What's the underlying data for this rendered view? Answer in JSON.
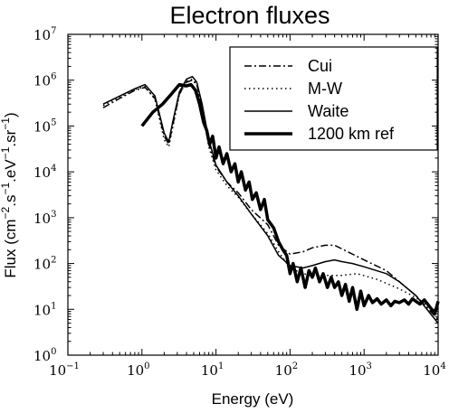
{
  "chart_data": {
    "type": "line",
    "title": "Electron fluxes",
    "xlabel": "Energy (eV)",
    "ylabel_parts": [
      "Flux (cm",
      "−2",
      ".s",
      "−1",
      ".eV",
      "−1",
      ".sr",
      "−1",
      ")"
    ],
    "xscale": "log",
    "yscale": "log",
    "xlim": [
      0.1,
      10000
    ],
    "ylim": [
      1,
      10000000
    ],
    "x_ticks": [
      {
        "base": "10",
        "exp": "−1"
      },
      {
        "base": "10",
        "exp": "0"
      },
      {
        "base": "10",
        "exp": "1"
      },
      {
        "base": "10",
        "exp": "2"
      },
      {
        "base": "10",
        "exp": "3"
      },
      {
        "base": "10",
        "exp": "4"
      }
    ],
    "y_ticks": [
      {
        "base": "10",
        "exp": "0"
      },
      {
        "base": "10",
        "exp": "1"
      },
      {
        "base": "10",
        "exp": "2"
      },
      {
        "base": "10",
        "exp": "3"
      },
      {
        "base": "10",
        "exp": "4"
      },
      {
        "base": "10",
        "exp": "5"
      },
      {
        "base": "10",
        "exp": "6"
      },
      {
        "base": "10",
        "exp": "7"
      }
    ],
    "grid": false,
    "legend_position": "top-right",
    "series": [
      {
        "name": "Cui",
        "style": "dashdot",
        "width": 1.5,
        "points": [
          [
            0.3,
            250000
          ],
          [
            0.5,
            400000
          ],
          [
            0.8,
            600000
          ],
          [
            1.1,
            700000
          ],
          [
            1.5,
            400000
          ],
          [
            2.0,
            60000
          ],
          [
            2.3,
            40000
          ],
          [
            2.6,
            100000
          ],
          [
            3.2,
            500000
          ],
          [
            4.0,
            900000
          ],
          [
            4.8,
            1000000
          ],
          [
            5.5,
            800000
          ],
          [
            6.5,
            250000
          ],
          [
            8.0,
            40000
          ],
          [
            10,
            13000
          ],
          [
            14,
            6000
          ],
          [
            20,
            3500
          ],
          [
            30,
            1500
          ],
          [
            50,
            700
          ],
          [
            70,
            250
          ],
          [
            100,
            160
          ],
          [
            150,
            180
          ],
          [
            200,
            220
          ],
          [
            300,
            250
          ],
          [
            400,
            250
          ],
          [
            600,
            180
          ],
          [
            1000,
            120
          ],
          [
            2000,
            70
          ],
          [
            3000,
            40
          ],
          [
            5000,
            20
          ],
          [
            10000,
            6
          ]
        ]
      },
      {
        "name": "M-W",
        "style": "dotted",
        "width": 1.5,
        "points": [
          [
            0.3,
            280000
          ],
          [
            0.5,
            430000
          ],
          [
            0.8,
            620000
          ],
          [
            1.1,
            720000
          ],
          [
            1.5,
            380000
          ],
          [
            2.0,
            50000
          ],
          [
            2.3,
            35000
          ],
          [
            2.6,
            90000
          ],
          [
            3.2,
            480000
          ],
          [
            4.0,
            950000
          ],
          [
            4.8,
            1050000
          ],
          [
            5.5,
            800000
          ],
          [
            6.5,
            220000
          ],
          [
            8.0,
            35000
          ],
          [
            10,
            11000
          ],
          [
            14,
            5000
          ],
          [
            20,
            2800
          ],
          [
            30,
            1200
          ],
          [
            50,
            450
          ],
          [
            70,
            180
          ],
          [
            100,
            80
          ],
          [
            150,
            60
          ],
          [
            200,
            55
          ],
          [
            300,
            55
          ],
          [
            500,
            55
          ],
          [
            800,
            60
          ],
          [
            1500,
            45
          ],
          [
            3000,
            28
          ],
          [
            5000,
            18
          ],
          [
            10000,
            8
          ]
        ]
      },
      {
        "name": "Waite",
        "style": "solid",
        "width": 1.5,
        "points": [
          [
            0.3,
            300000
          ],
          [
            0.5,
            450000
          ],
          [
            0.8,
            650000
          ],
          [
            1.1,
            800000
          ],
          [
            1.5,
            450000
          ],
          [
            2.0,
            70000
          ],
          [
            2.3,
            45000
          ],
          [
            2.6,
            120000
          ],
          [
            3.2,
            550000
          ],
          [
            4.0,
            1050000
          ],
          [
            4.8,
            1200000
          ],
          [
            5.5,
            900000
          ],
          [
            6.5,
            300000
          ],
          [
            8.0,
            50000
          ],
          [
            10,
            14000
          ],
          [
            14,
            6000
          ],
          [
            20,
            3000
          ],
          [
            30,
            1200
          ],
          [
            50,
            400
          ],
          [
            70,
            150
          ],
          [
            100,
            90
          ],
          [
            150,
            80
          ],
          [
            200,
            90
          ],
          [
            300,
            110
          ],
          [
            400,
            120
          ],
          [
            500,
            110
          ],
          [
            700,
            100
          ],
          [
            1000,
            85
          ],
          [
            2000,
            60
          ],
          [
            3000,
            40
          ],
          [
            5000,
            20
          ],
          [
            10000,
            5
          ]
        ]
      },
      {
        "name": "1200 km ref",
        "style": "solid",
        "width": 3.5,
        "points": [
          [
            1.0,
            100000
          ],
          [
            1.4,
            200000
          ],
          [
            1.9,
            300000
          ],
          [
            2.5,
            500000
          ],
          [
            3.2,
            800000
          ],
          [
            4.0,
            750000
          ],
          [
            4.6,
            800000
          ],
          [
            5.3,
            600000
          ],
          [
            6.0,
            300000
          ],
          [
            6.8,
            120000
          ],
          [
            7.5,
            80000
          ],
          [
            8.2,
            40000
          ],
          [
            9.0,
            60000
          ],
          [
            10,
            20000
          ],
          [
            11,
            35000
          ],
          [
            12.5,
            15000
          ],
          [
            14,
            25000
          ],
          [
            16,
            10000
          ],
          [
            18,
            15000
          ],
          [
            20,
            6000
          ],
          [
            22,
            10000
          ],
          [
            25,
            4000
          ],
          [
            28,
            6000
          ],
          [
            31,
            2500
          ],
          [
            35,
            3500
          ],
          [
            40,
            1500
          ],
          [
            45,
            2500
          ],
          [
            50,
            900
          ],
          [
            60,
            600
          ],
          [
            70,
            300
          ],
          [
            80,
            200
          ],
          [
            90,
            150
          ],
          [
            100,
            60
          ],
          [
            110,
            100
          ],
          [
            125,
            40
          ],
          [
            140,
            80
          ],
          [
            160,
            30
          ],
          [
            180,
            70
          ],
          [
            200,
            50
          ],
          [
            220,
            80
          ],
          [
            250,
            40
          ],
          [
            280,
            60
          ],
          [
            320,
            30
          ],
          [
            360,
            50
          ],
          [
            400,
            30
          ],
          [
            450,
            40
          ],
          [
            500,
            20
          ],
          [
            560,
            35
          ],
          [
            630,
            15
          ],
          [
            700,
            30
          ],
          [
            800,
            10
          ],
          [
            900,
            25
          ],
          [
            1000,
            12
          ],
          [
            1150,
            20
          ],
          [
            1300,
            14
          ],
          [
            1500,
            17
          ],
          [
            1700,
            13
          ],
          [
            2000,
            16
          ],
          [
            2300,
            12
          ],
          [
            2600,
            15
          ],
          [
            3000,
            14
          ],
          [
            3500,
            16
          ],
          [
            4000,
            13
          ],
          [
            4500,
            17
          ],
          [
            5000,
            15
          ],
          [
            5700,
            13
          ],
          [
            6500,
            16
          ],
          [
            7500,
            12
          ],
          [
            8200,
            10
          ],
          [
            9000,
            8
          ],
          [
            10000,
            15
          ]
        ]
      }
    ]
  }
}
